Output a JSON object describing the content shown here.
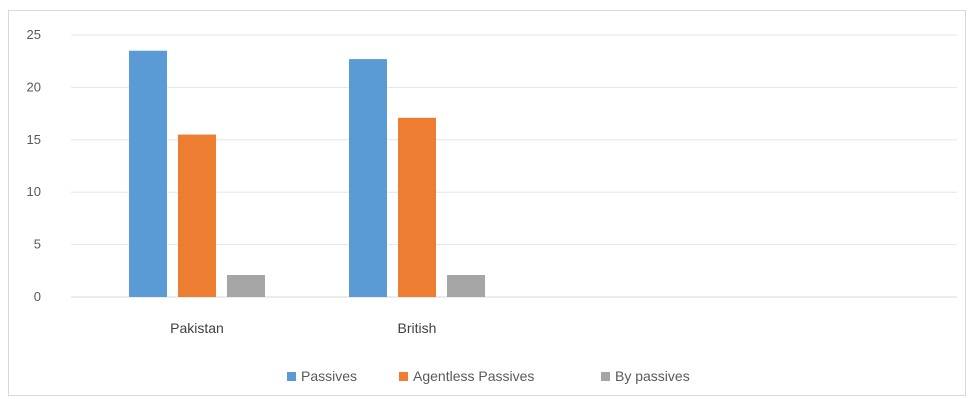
{
  "chart_data": {
    "type": "bar",
    "categories": [
      "Pakistan",
      "British"
    ],
    "series": [
      {
        "name": "Passives",
        "values": [
          23.5,
          22.7
        ],
        "color": "#5b9bd5"
      },
      {
        "name": "Agentless Passives",
        "values": [
          15.5,
          17.1
        ],
        "color": "#ed7d31"
      },
      {
        "name": "By passives",
        "values": [
          2.1,
          2.1
        ],
        "color": "#a5a5a5"
      }
    ],
    "ylim": [
      0,
      25
    ],
    "yticks": [
      0,
      5,
      10,
      15,
      20,
      25
    ],
    "grid": true,
    "legend_position": "bottom",
    "title": "",
    "xlabel": "",
    "ylabel": ""
  }
}
